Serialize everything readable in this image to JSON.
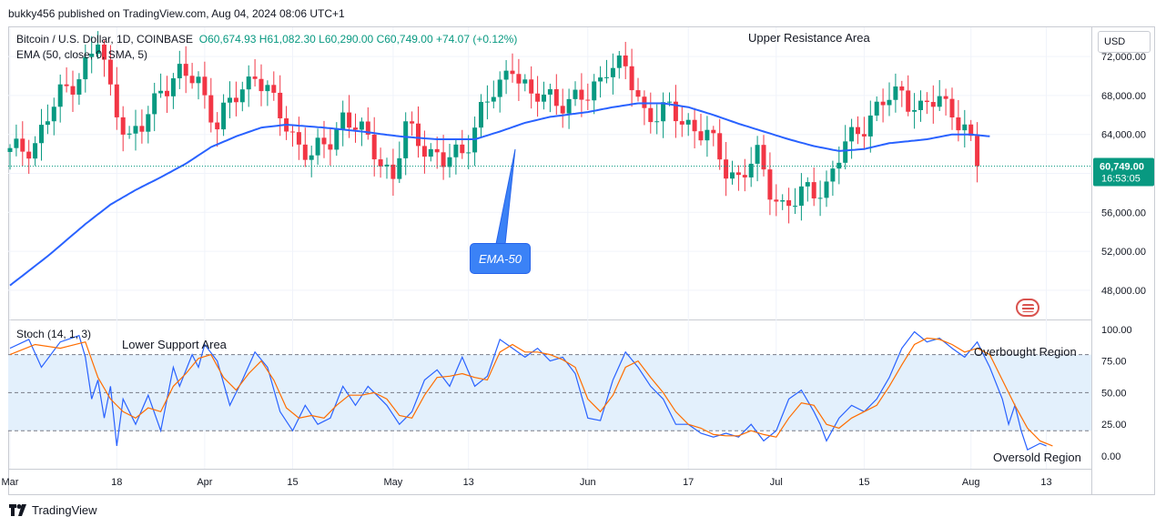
{
  "header": {
    "publisher": "bukky456 published on TradingView.com, Aug 04, 2024 08:06 UTC+1"
  },
  "legend": {
    "symbol": "Bitcoin / U.S. Dollar, 1D, COINBASE",
    "ohlc": "O60,674.93  H61,082.30  L60,290.00  C60,749.00  +74.07 (+0.12%)",
    "ema": "EMA (50, close, 0, SMA, 5)",
    "stoch": "Stoch (14, 1, 3)"
  },
  "currency": "USD",
  "annotations": {
    "upper": "Upper Resistance Area",
    "lower": "Lower Support Area",
    "overbought": "Overbought Region",
    "oversold": "Oversold Region",
    "ema_callout": "EMA-50"
  },
  "footer": {
    "brand": "TradingView"
  },
  "colors": {
    "up": "#089981",
    "down": "#f23645",
    "ema": "#2962ff",
    "stoch_k": "#2962ff",
    "stoch_d": "#ff6d00",
    "band": "#e3f0fc"
  },
  "chart_data": [
    {
      "type": "candlestick",
      "title": "Bitcoin / U.S. Dollar, 1D, COINBASE",
      "y_ticks": [
        48000,
        52000,
        56000,
        60000,
        64000,
        68000,
        72000
      ],
      "y_tick_labels": [
        "48,000.00",
        "52,000.00",
        "56,000.00",
        "60,000.00",
        "64,000.00",
        "68,000.00",
        "72,000.00"
      ],
      "ylim": [
        45000,
        75000
      ],
      "last_price": {
        "value": 60749,
        "label": "60,749.00",
        "countdown": "16:53:05"
      },
      "x_ticks": [
        {
          "day": 0,
          "label": "Mar"
        },
        {
          "day": 17,
          "label": "18"
        },
        {
          "day": 31,
          "label": "Apr"
        },
        {
          "day": 45,
          "label": "15"
        },
        {
          "day": 61,
          "label": "May"
        },
        {
          "day": 73,
          "label": "13"
        },
        {
          "day": 92,
          "label": "Jun"
        },
        {
          "day": 108,
          "label": "17"
        },
        {
          "day": 122,
          "label": "Jul"
        },
        {
          "day": 136,
          "label": "15"
        },
        {
          "day": 153,
          "label": "Aug"
        },
        {
          "day": 165,
          "label": "13"
        }
      ],
      "close_anchors": [
        [
          0,
          62000
        ],
        [
          4,
          63200
        ],
        [
          8,
          68000
        ],
        [
          10,
          69500
        ],
        [
          13,
          72000
        ],
        [
          14,
          73500
        ],
        [
          16,
          68500
        ],
        [
          19,
          63500
        ],
        [
          21,
          64500
        ],
        [
          24,
          69000
        ],
        [
          27,
          70000
        ],
        [
          30,
          69500
        ],
        [
          33,
          65000
        ],
        [
          35,
          67000
        ],
        [
          39,
          70500
        ],
        [
          42,
          67000
        ],
        [
          45,
          64000
        ],
        [
          48,
          61500
        ],
        [
          51,
          63500
        ],
        [
          53,
          66000
        ],
        [
          56,
          64000
        ],
        [
          58,
          62500
        ],
        [
          61,
          59500
        ],
        [
          63,
          64500
        ],
        [
          66,
          63000
        ],
        [
          69,
          61000
        ],
        [
          72,
          62200
        ],
        [
          75,
          66500
        ],
        [
          78,
          68800
        ],
        [
          80,
          71500
        ],
        [
          83,
          67500
        ],
        [
          86,
          68000
        ],
        [
          89,
          67200
        ],
        [
          92,
          67800
        ],
        [
          95,
          71200
        ],
        [
          98,
          70500
        ],
        [
          101,
          66500
        ],
        [
          103,
          66000
        ],
        [
          105,
          66300
        ],
        [
          108,
          65200
        ],
        [
          111,
          63800
        ],
        [
          114,
          60500
        ],
        [
          116,
          59700
        ],
        [
          119,
          61500
        ],
        [
          121,
          58500
        ],
        [
          123,
          56800
        ],
        [
          125,
          57000
        ],
        [
          127,
          58200
        ],
        [
          130,
          58800
        ],
        [
          133,
          62800
        ],
        [
          135,
          64500
        ],
        [
          137,
          66000
        ],
        [
          140,
          67600
        ],
        [
          142,
          68400
        ],
        [
          145,
          66500
        ],
        [
          148,
          67500
        ],
        [
          150,
          66800
        ],
        [
          152,
          64300
        ],
        [
          153,
          62800
        ],
        [
          154,
          60749
        ]
      ],
      "ema": {
        "label": "EMA-50",
        "anchors": [
          [
            0,
            48500
          ],
          [
            6,
            51500
          ],
          [
            12,
            54800
          ],
          [
            16,
            56800
          ],
          [
            20,
            58300
          ],
          [
            24,
            59600
          ],
          [
            28,
            61000
          ],
          [
            32,
            62700
          ],
          [
            36,
            63800
          ],
          [
            40,
            64700
          ],
          [
            44,
            65000
          ],
          [
            50,
            64700
          ],
          [
            56,
            64300
          ],
          [
            62,
            63800
          ],
          [
            68,
            63500
          ],
          [
            74,
            63500
          ],
          [
            78,
            64300
          ],
          [
            82,
            65200
          ],
          [
            86,
            65800
          ],
          [
            92,
            66300
          ],
          [
            96,
            66800
          ],
          [
            100,
            67200
          ],
          [
            104,
            67200
          ],
          [
            108,
            66800
          ],
          [
            112,
            66000
          ],
          [
            116,
            65100
          ],
          [
            120,
            64300
          ],
          [
            124,
            63500
          ],
          [
            128,
            62800
          ],
          [
            132,
            62300
          ],
          [
            136,
            62500
          ],
          [
            140,
            63100
          ],
          [
            146,
            63500
          ],
          [
            150,
            64000
          ],
          [
            153,
            64000
          ],
          [
            156,
            63800
          ]
        ]
      }
    },
    {
      "type": "line",
      "title": "Stoch (14, 1, 3)",
      "y_ticks": [
        0,
        25,
        50,
        75,
        100
      ],
      "y_tick_labels": [
        "0.00",
        "25.00",
        "50.00",
        "75.00",
        "100.00"
      ],
      "ylim": [
        -10,
        107
      ],
      "bands": {
        "upper": 80,
        "middle": 50,
        "lower": 20
      },
      "series": [
        {
          "name": "%K",
          "anchors": [
            [
              0,
              85
            ],
            [
              3,
              92
            ],
            [
              5,
              70
            ],
            [
              8,
              90
            ],
            [
              11,
              95
            ],
            [
              12,
              78
            ],
            [
              13,
              45
            ],
            [
              14,
              60
            ],
            [
              15,
              30
            ],
            [
              16,
              55
            ],
            [
              17,
              8
            ],
            [
              18,
              45
            ],
            [
              20,
              25
            ],
            [
              22,
              48
            ],
            [
              24,
              20
            ],
            [
              26,
              70
            ],
            [
              27,
              55
            ],
            [
              29,
              80
            ],
            [
              30,
              70
            ],
            [
              31,
              88
            ],
            [
              33,
              75
            ],
            [
              35,
              40
            ],
            [
              37,
              60
            ],
            [
              39,
              82
            ],
            [
              41,
              70
            ],
            [
              43,
              35
            ],
            [
              45,
              20
            ],
            [
              47,
              40
            ],
            [
              49,
              25
            ],
            [
              51,
              30
            ],
            [
              53,
              55
            ],
            [
              55,
              40
            ],
            [
              57,
              55
            ],
            [
              60,
              40
            ],
            [
              62,
              25
            ],
            [
              63,
              30
            ],
            [
              64,
              35
            ],
            [
              66,
              60
            ],
            [
              68,
              68
            ],
            [
              70,
              55
            ],
            [
              72,
              78
            ],
            [
              74,
              55
            ],
            [
              76,
              63
            ],
            [
              78,
              92
            ],
            [
              80,
              85
            ],
            [
              82,
              78
            ],
            [
              84,
              85
            ],
            [
              86,
              75
            ],
            [
              88,
              78
            ],
            [
              90,
              65
            ],
            [
              92,
              30
            ],
            [
              94,
              28
            ],
            [
              96,
              60
            ],
            [
              98,
              82
            ],
            [
              100,
              70
            ],
            [
              102,
              55
            ],
            [
              104,
              45
            ],
            [
              106,
              25
            ],
            [
              108,
              25
            ],
            [
              110,
              18
            ],
            [
              112,
              15
            ],
            [
              114,
              18
            ],
            [
              116,
              15
            ],
            [
              118,
              25
            ],
            [
              120,
              12
            ],
            [
              122,
              20
            ],
            [
              124,
              45
            ],
            [
              126,
              52
            ],
            [
              128,
              35
            ],
            [
              129,
              25
            ],
            [
              130,
              12
            ],
            [
              132,
              30
            ],
            [
              134,
              40
            ],
            [
              136,
              35
            ],
            [
              138,
              45
            ],
            [
              140,
              62
            ],
            [
              142,
              85
            ],
            [
              144,
              98
            ],
            [
              146,
              90
            ],
            [
              148,
              93
            ],
            [
              150,
              85
            ],
            [
              152,
              78
            ],
            [
              154,
              90
            ],
            [
              156,
              70
            ],
            [
              158,
              45
            ],
            [
              159,
              25
            ],
            [
              160,
              40
            ],
            [
              161,
              20
            ],
            [
              162,
              5
            ],
            [
              164,
              10
            ],
            [
              165,
              8
            ]
          ]
        },
        {
          "name": "%D",
          "anchors": [
            [
              0,
              80
            ],
            [
              4,
              88
            ],
            [
              8,
              85
            ],
            [
              12,
              90
            ],
            [
              14,
              62
            ],
            [
              16,
              45
            ],
            [
              18,
              35
            ],
            [
              20,
              30
            ],
            [
              22,
              38
            ],
            [
              24,
              35
            ],
            [
              26,
              55
            ],
            [
              28,
              65
            ],
            [
              30,
              77
            ],
            [
              32,
              80
            ],
            [
              34,
              62
            ],
            [
              36,
              52
            ],
            [
              38,
              65
            ],
            [
              40,
              75
            ],
            [
              42,
              60
            ],
            [
              44,
              38
            ],
            [
              46,
              30
            ],
            [
              48,
              32
            ],
            [
              50,
              30
            ],
            [
              52,
              40
            ],
            [
              54,
              48
            ],
            [
              56,
              48
            ],
            [
              58,
              50
            ],
            [
              60,
              45
            ],
            [
              62,
              32
            ],
            [
              64,
              30
            ],
            [
              66,
              48
            ],
            [
              68,
              62
            ],
            [
              70,
              63
            ],
            [
              72,
              65
            ],
            [
              74,
              62
            ],
            [
              76,
              60
            ],
            [
              78,
              82
            ],
            [
              80,
              88
            ],
            [
              82,
              82
            ],
            [
              84,
              82
            ],
            [
              86,
              80
            ],
            [
              88,
              76
            ],
            [
              90,
              70
            ],
            [
              92,
              45
            ],
            [
              94,
              35
            ],
            [
              96,
              48
            ],
            [
              98,
              70
            ],
            [
              100,
              75
            ],
            [
              102,
              62
            ],
            [
              104,
              50
            ],
            [
              106,
              35
            ],
            [
              108,
              25
            ],
            [
              110,
              22
            ],
            [
              112,
              17
            ],
            [
              114,
              16
            ],
            [
              116,
              16
            ],
            [
              118,
              20
            ],
            [
              120,
              17
            ],
            [
              122,
              15
            ],
            [
              124,
              30
            ],
            [
              126,
              42
            ],
            [
              128,
              40
            ],
            [
              130,
              25
            ],
            [
              132,
              22
            ],
            [
              134,
              30
            ],
            [
              136,
              35
            ],
            [
              138,
              40
            ],
            [
              140,
              55
            ],
            [
              142,
              72
            ],
            [
              144,
              88
            ],
            [
              146,
              93
            ],
            [
              148,
              92
            ],
            [
              150,
              88
            ],
            [
              152,
              82
            ],
            [
              154,
              85
            ],
            [
              156,
              80
            ],
            [
              158,
              60
            ],
            [
              160,
              40
            ],
            [
              162,
              22
            ],
            [
              164,
              12
            ],
            [
              166,
              8
            ]
          ]
        }
      ]
    }
  ]
}
